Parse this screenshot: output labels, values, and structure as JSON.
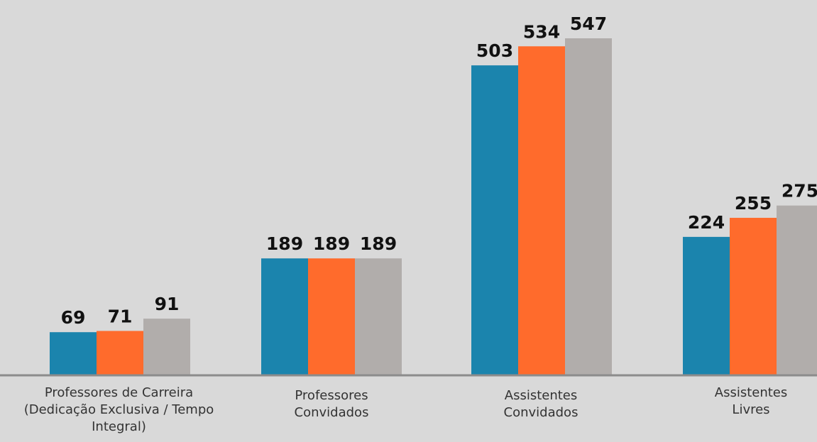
{
  "chart_data": {
    "type": "bar",
    "categories": [
      "Professores de Carreira\n(Dedicação Exclusiva / Tempo\nIntegral)",
      "Professores\nConvidados",
      "Assistentes\nConvidados",
      "Assistentes\nLivres"
    ],
    "series": [
      {
        "values": [
          69,
          189,
          503,
          224
        ],
        "color": "#1b84ad"
      },
      {
        "values": [
          71,
          189,
          534,
          255
        ],
        "color": "#ff6b2c"
      },
      {
        "values": [
          91,
          189,
          547,
          275
        ],
        "color": "#b1adab"
      }
    ],
    "title": "",
    "xlabel": "",
    "ylabel": "",
    "ylim": [
      0,
      580
    ],
    "grid": false,
    "legend": "none",
    "data_labels": true,
    "axis_color": "#8c8c8c"
  }
}
